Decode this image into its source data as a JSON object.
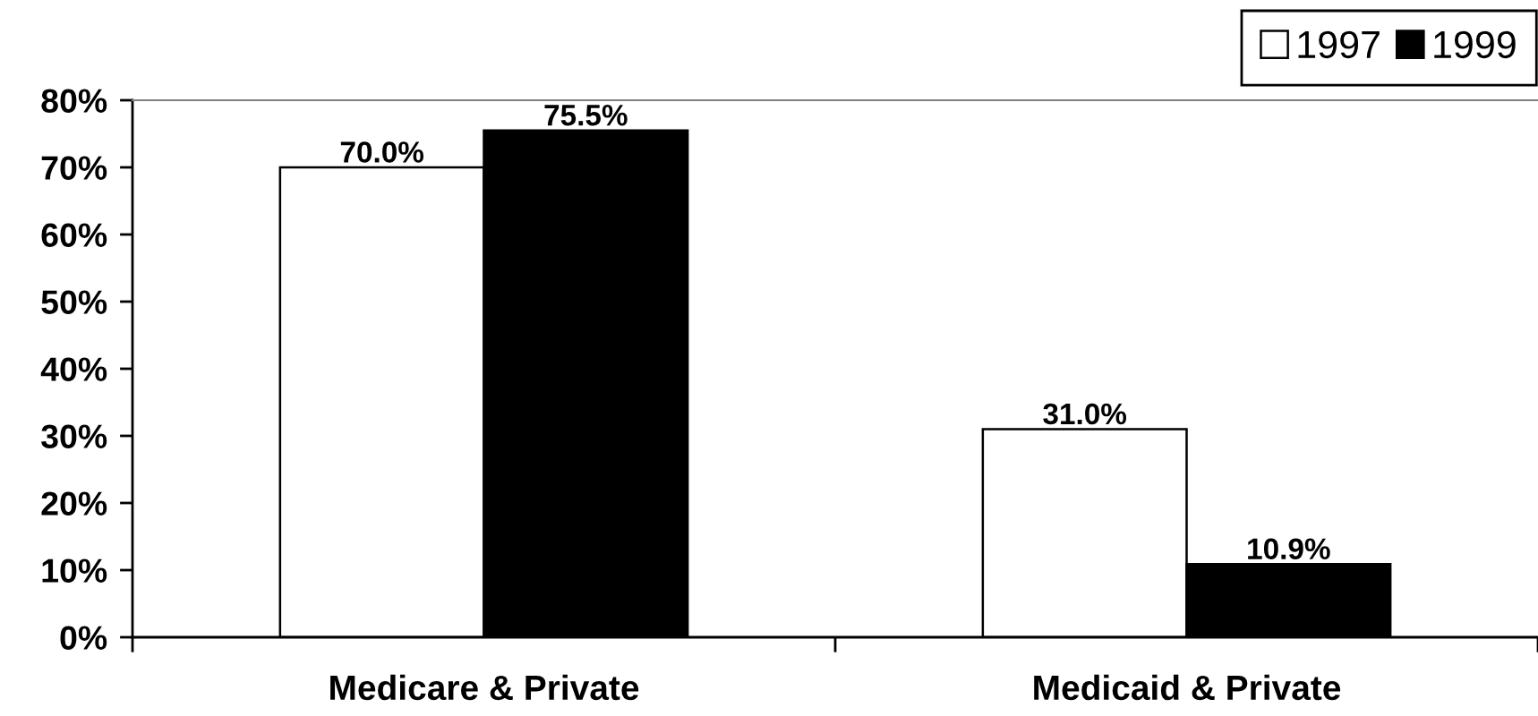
{
  "chart_data": {
    "type": "bar",
    "categories": [
      "Medicare & Private",
      "Medicaid & Private"
    ],
    "series": [
      {
        "name": "1997",
        "color": "#ffffff",
        "values": [
          70.0,
          31.0
        ],
        "value_labels": [
          "70.0%",
          "31.0%"
        ]
      },
      {
        "name": "1999",
        "color": "#000000",
        "values": [
          75.5,
          10.9
        ],
        "value_labels": [
          "75.5%",
          "10.9%"
        ]
      }
    ],
    "ylim": [
      0,
      80
    ],
    "yticks": [
      {
        "value": 0,
        "label": "0%"
      },
      {
        "value": 10,
        "label": "10%"
      },
      {
        "value": 20,
        "label": "20%"
      },
      {
        "value": 30,
        "label": "30%"
      },
      {
        "value": 40,
        "label": "40%"
      },
      {
        "value": 50,
        "label": "50%"
      },
      {
        "value": 60,
        "label": "60%"
      },
      {
        "value": 70,
        "label": "70%"
      },
      {
        "value": 80,
        "label": "80%"
      }
    ],
    "legend": "top right"
  }
}
